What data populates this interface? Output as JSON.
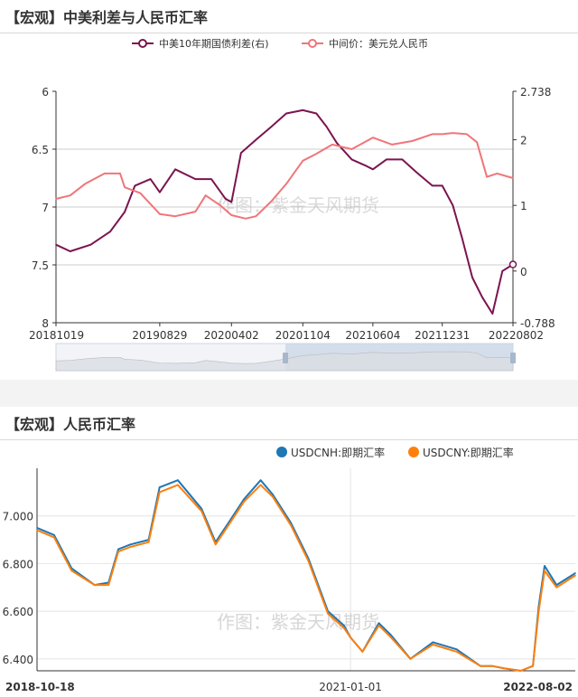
{
  "panels": [
    {
      "title": "【宏观】中美利差与人民币汇率",
      "watermark": "作图：紫金天风期货",
      "colors": {
        "spread": "#7b1450",
        "cny": "#f0757a",
        "grid": "#cccccc"
      },
      "legend": [
        {
          "label": "中美10年期国债利差(右)",
          "color": "#7b1450"
        },
        {
          "label": "中间价：美元兑人民币",
          "color": "#f0757a"
        }
      ],
      "left_axis_ticks": [
        "6",
        "6.5",
        "7",
        "7.5",
        "8"
      ],
      "right_axis_ticks": [
        "2.738",
        "2",
        "1",
        "0",
        "-0.788"
      ],
      "x_ticks": [
        "20181019",
        "20190829",
        "20200402",
        "20201104",
        "20210604",
        "20211231",
        "20220802"
      ]
    },
    {
      "title": "【宏观】人民币汇率",
      "watermark": "作图：紫金天风期货",
      "colors": {
        "cnh": "#1f77b4",
        "cny": "#ff7f0e",
        "grid": "#cccccc"
      },
      "legend": [
        {
          "label": "USDCNH:即期汇率",
          "color": "#1f77b4"
        },
        {
          "label": "USDCNY:即期汇率",
          "color": "#ff7f0e"
        }
      ],
      "y_ticks": [
        "7.000",
        "6.800",
        "6.600",
        "6.400"
      ],
      "x_ticks": [
        "2018-10-18",
        "2021-01-01",
        "2022-08-02"
      ]
    }
  ],
  "chart_data": [
    {
      "type": "line",
      "title": "【宏观】中美利差与人民币汇率",
      "x_range": [
        "2018-10-19",
        "2022-08-02"
      ],
      "left_axis": {
        "min": 6,
        "max": 8,
        "inverted": true
      },
      "right_axis": {
        "min": -0.788,
        "max": 2.738
      },
      "series": [
        {
          "name": "中美10年期国债利差(右)",
          "axis": "right",
          "x": [
            "2018-10-19",
            "2018-12-01",
            "2019-02-01",
            "2019-04-01",
            "2019-05-15",
            "2019-06-15",
            "2019-08-01",
            "2019-08-29",
            "2019-10-15",
            "2019-12-15",
            "2020-02-01",
            "2020-03-15",
            "2020-04-02",
            "2020-05-01",
            "2020-06-15",
            "2020-08-01",
            "2020-09-15",
            "2020-11-04",
            "2020-12-15",
            "2021-01-15",
            "2021-02-15",
            "2021-04-01",
            "2021-05-15",
            "2021-06-04",
            "2021-07-15",
            "2021-09-01",
            "2021-10-15",
            "2021-12-01",
            "2021-12-31",
            "2022-02-01",
            "2022-03-01",
            "2022-04-01",
            "2022-05-01",
            "2022-06-01",
            "2022-07-01",
            "2022-08-02"
          ],
          "values": [
            0.4,
            0.3,
            0.4,
            0.6,
            0.9,
            1.3,
            1.4,
            1.2,
            1.55,
            1.4,
            1.4,
            1.1,
            1.05,
            1.8,
            2.0,
            2.2,
            2.4,
            2.45,
            2.4,
            2.2,
            1.95,
            1.7,
            1.6,
            1.55,
            1.7,
            1.7,
            1.5,
            1.3,
            1.3,
            1.0,
            0.5,
            -0.1,
            -0.4,
            -0.65,
            0.0,
            0.1
          ]
        },
        {
          "name": "中间价：美元兑人民币",
          "axis": "left",
          "x": [
            "2018-10-19",
            "2018-12-01",
            "2019-01-15",
            "2019-03-15",
            "2019-05-01",
            "2019-05-15",
            "2019-07-01",
            "2019-08-29",
            "2019-10-15",
            "2019-12-15",
            "2020-01-15",
            "2020-03-01",
            "2020-04-02",
            "2020-05-15",
            "2020-06-15",
            "2020-08-01",
            "2020-09-15",
            "2020-11-04",
            "2020-12-15",
            "2021-02-01",
            "2021-04-01",
            "2021-06-04",
            "2021-08-01",
            "2021-10-01",
            "2021-12-01",
            "2021-12-31",
            "2022-02-01",
            "2022-03-15",
            "2022-04-15",
            "2022-05-15",
            "2022-06-15",
            "2022-08-02"
          ],
          "values": [
            6.93,
            6.9,
            6.8,
            6.71,
            6.71,
            6.83,
            6.88,
            7.06,
            7.08,
            7.04,
            6.9,
            6.99,
            7.07,
            7.1,
            7.08,
            6.95,
            6.8,
            6.6,
            6.54,
            6.46,
            6.5,
            6.4,
            6.46,
            6.43,
            6.37,
            6.37,
            6.36,
            6.37,
            6.44,
            6.74,
            6.71,
            6.75
          ]
        }
      ]
    },
    {
      "type": "line",
      "title": "【宏观】人民币汇率",
      "x_range": [
        "2018-10-18",
        "2022-08-02"
      ],
      "y_range": [
        6.35,
        7.2
      ],
      "series": [
        {
          "name": "USDCNH:即期汇率",
          "x": [
            "2018-10-18",
            "2018-12-01",
            "2019-01-15",
            "2019-03-15",
            "2019-04-20",
            "2019-05-15",
            "2019-06-15",
            "2019-08-01",
            "2019-08-29",
            "2019-10-15",
            "2019-12-15",
            "2020-01-20",
            "2020-03-01",
            "2020-04-02",
            "2020-05-15",
            "2020-06-15",
            "2020-08-01",
            "2020-09-15",
            "2020-11-04",
            "2020-12-15",
            "2021-01-01",
            "2021-02-01",
            "2021-03-15",
            "2021-04-15",
            "2021-06-04",
            "2021-08-01",
            "2021-10-01",
            "2021-12-01",
            "2021-12-31",
            "2022-02-01",
            "2022-03-15",
            "2022-04-15",
            "2022-04-30",
            "2022-05-15",
            "2022-06-15",
            "2022-08-02"
          ],
          "values": [
            6.95,
            6.92,
            6.78,
            6.71,
            6.72,
            6.86,
            6.88,
            6.9,
            7.12,
            7.15,
            7.03,
            6.89,
            6.99,
            7.07,
            7.15,
            7.09,
            6.97,
            6.82,
            6.6,
            6.54,
            6.49,
            6.43,
            6.55,
            6.5,
            6.4,
            6.47,
            6.44,
            6.37,
            6.37,
            6.36,
            6.35,
            6.37,
            6.62,
            6.79,
            6.71,
            6.76
          ]
        },
        {
          "name": "USDCNY:即期汇率",
          "x": [
            "2018-10-18",
            "2018-12-01",
            "2019-01-15",
            "2019-03-15",
            "2019-04-20",
            "2019-05-15",
            "2019-06-15",
            "2019-08-01",
            "2019-08-29",
            "2019-10-15",
            "2019-12-15",
            "2020-01-20",
            "2020-03-01",
            "2020-04-02",
            "2020-05-15",
            "2020-06-15",
            "2020-08-01",
            "2020-09-15",
            "2020-11-04",
            "2020-12-15",
            "2021-01-01",
            "2021-02-01",
            "2021-03-15",
            "2021-04-15",
            "2021-06-04",
            "2021-08-01",
            "2021-10-01",
            "2021-12-01",
            "2021-12-31",
            "2022-02-01",
            "2022-03-15",
            "2022-04-15",
            "2022-04-30",
            "2022-05-15",
            "2022-06-15",
            "2022-08-02"
          ],
          "values": [
            6.94,
            6.91,
            6.77,
            6.71,
            6.71,
            6.85,
            6.87,
            6.89,
            7.1,
            7.13,
            7.02,
            6.88,
            6.98,
            7.06,
            7.13,
            7.08,
            6.96,
            6.81,
            6.59,
            6.53,
            6.49,
            6.43,
            6.54,
            6.49,
            6.4,
            6.46,
            6.43,
            6.37,
            6.37,
            6.36,
            6.35,
            6.37,
            6.6,
            6.77,
            6.7,
            6.75
          ]
        }
      ]
    }
  ]
}
